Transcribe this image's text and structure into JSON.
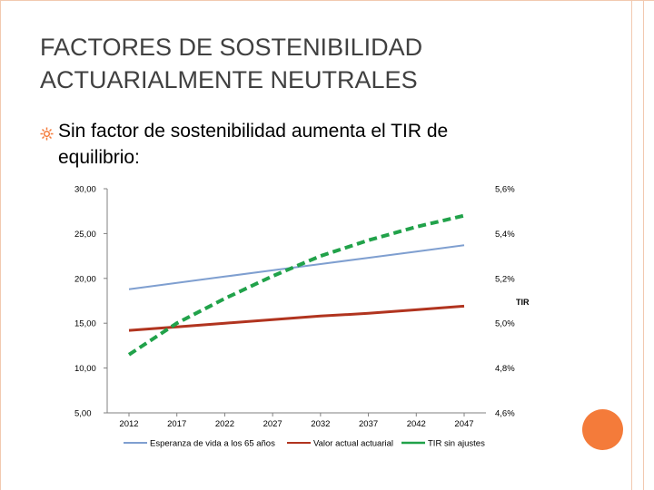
{
  "slide": {
    "title_line1": "FACTORES DE SOSTENIBILIDAD",
    "title_line2": "ACTUARIALMENTE NEUTRALES",
    "bullet": "Sin factor de sostenibilidad aumenta el TIR de equilibrio:",
    "accent_color": "#f47b3a",
    "bullet_icon": "sun-bullet-icon"
  },
  "chart_data": {
    "type": "line",
    "title": "",
    "x": [
      2012,
      2017,
      2022,
      2027,
      2032,
      2037,
      2042,
      2047
    ],
    "x_tick_labels": [
      "2012",
      "2017",
      "2022",
      "2027",
      "2032",
      "2037",
      "2042",
      "2047"
    ],
    "y_left": {
      "ticks": [
        "30,00",
        "25,00",
        "20,00",
        "15,00",
        "10,00",
        "5,00"
      ],
      "tick_values": [
        30,
        25,
        20,
        15,
        10,
        5
      ],
      "lim": [
        5,
        30
      ]
    },
    "y_right": {
      "label": "TIR",
      "ticks": [
        "5,6%",
        "5,4%",
        "5,2%",
        "5,0%",
        "4,8%",
        "4,6%"
      ],
      "tick_values": [
        5.6,
        5.4,
        5.2,
        5.0,
        4.8,
        4.6
      ],
      "lim": [
        4.6,
        5.6
      ]
    },
    "series": [
      {
        "name": "Esperanza de vida a los 65 años",
        "axis": "left",
        "color": "#7f9fd0",
        "style": "solid",
        "values": [
          18.8,
          19.5,
          20.2,
          20.9,
          21.6,
          22.3,
          23.0,
          23.7
        ]
      },
      {
        "name": "Valor actual actuarial",
        "axis": "left",
        "color": "#b1341f",
        "style": "solid",
        "values": [
          14.2,
          14.6,
          15.0,
          15.4,
          15.8,
          16.1,
          16.5,
          16.9
        ]
      },
      {
        "name": "TIR sin ajustes",
        "axis": "right",
        "color": "#21a24a",
        "style": "dashed",
        "values": [
          4.86,
          5.0,
          5.11,
          5.21,
          5.3,
          5.37,
          5.43,
          5.48
        ]
      }
    ],
    "legend_position": "bottom"
  }
}
